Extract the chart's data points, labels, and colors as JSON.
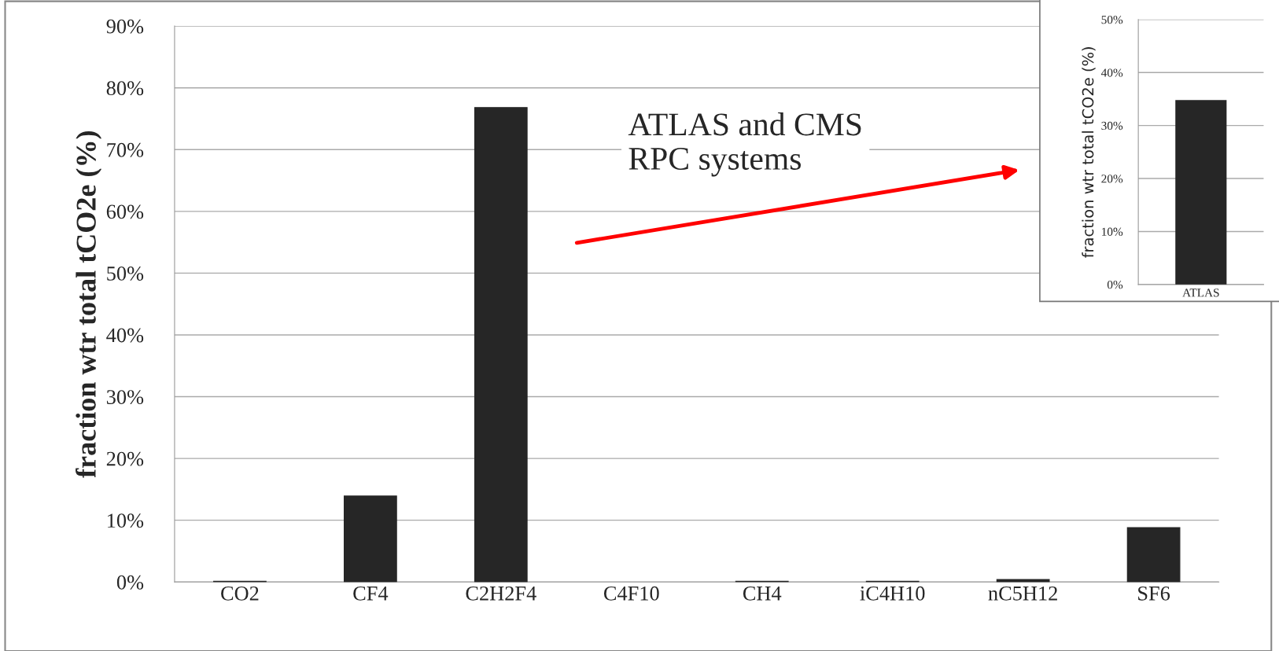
{
  "chart_data": [
    {
      "type": "bar",
      "ylabel": "fraction wtr total tCO2e (%)",
      "categories": [
        "CO2",
        "CF4",
        "C2H2F4",
        "C4F10",
        "CH4",
        "iC4H10",
        "nC5H12",
        "SF6"
      ],
      "values": [
        0.1,
        13.9,
        76.8,
        null,
        0.1,
        0.1,
        0.4,
        8.8
      ],
      "color": "#262626",
      "ylim": [
        0,
        90
      ],
      "yticks": [
        {
          "value": 0,
          "label": "0%"
        },
        {
          "value": 10,
          "label": "10%"
        },
        {
          "value": 20,
          "label": "20%"
        },
        {
          "value": 30,
          "label": "30%"
        },
        {
          "value": 40,
          "label": "40%"
        },
        {
          "value": 50,
          "label": "50%"
        },
        {
          "value": 60,
          "label": "60%"
        },
        {
          "value": 70,
          "label": "70%"
        },
        {
          "value": 80,
          "label": "80%"
        },
        {
          "value": 90,
          "label": "90%"
        }
      ],
      "grid": "y",
      "annotations": [
        "ATLAS and CMS\nRPC systems"
      ]
    },
    {
      "type": "bar",
      "ylabel": "fraction wtr total tCO2e (%)",
      "categories": [
        "ATLAS"
      ],
      "values": [
        34.7
      ],
      "color": "#262626",
      "ylim": [
        0,
        50
      ],
      "yticks": [
        {
          "value": 0,
          "label": "0%"
        },
        {
          "value": 10,
          "label": "10%"
        },
        {
          "value": 20,
          "label": "20%"
        },
        {
          "value": 30,
          "label": "30%"
        },
        {
          "value": 40,
          "label": "40%"
        },
        {
          "value": 50,
          "label": "50%"
        }
      ],
      "grid": "y"
    }
  ]
}
